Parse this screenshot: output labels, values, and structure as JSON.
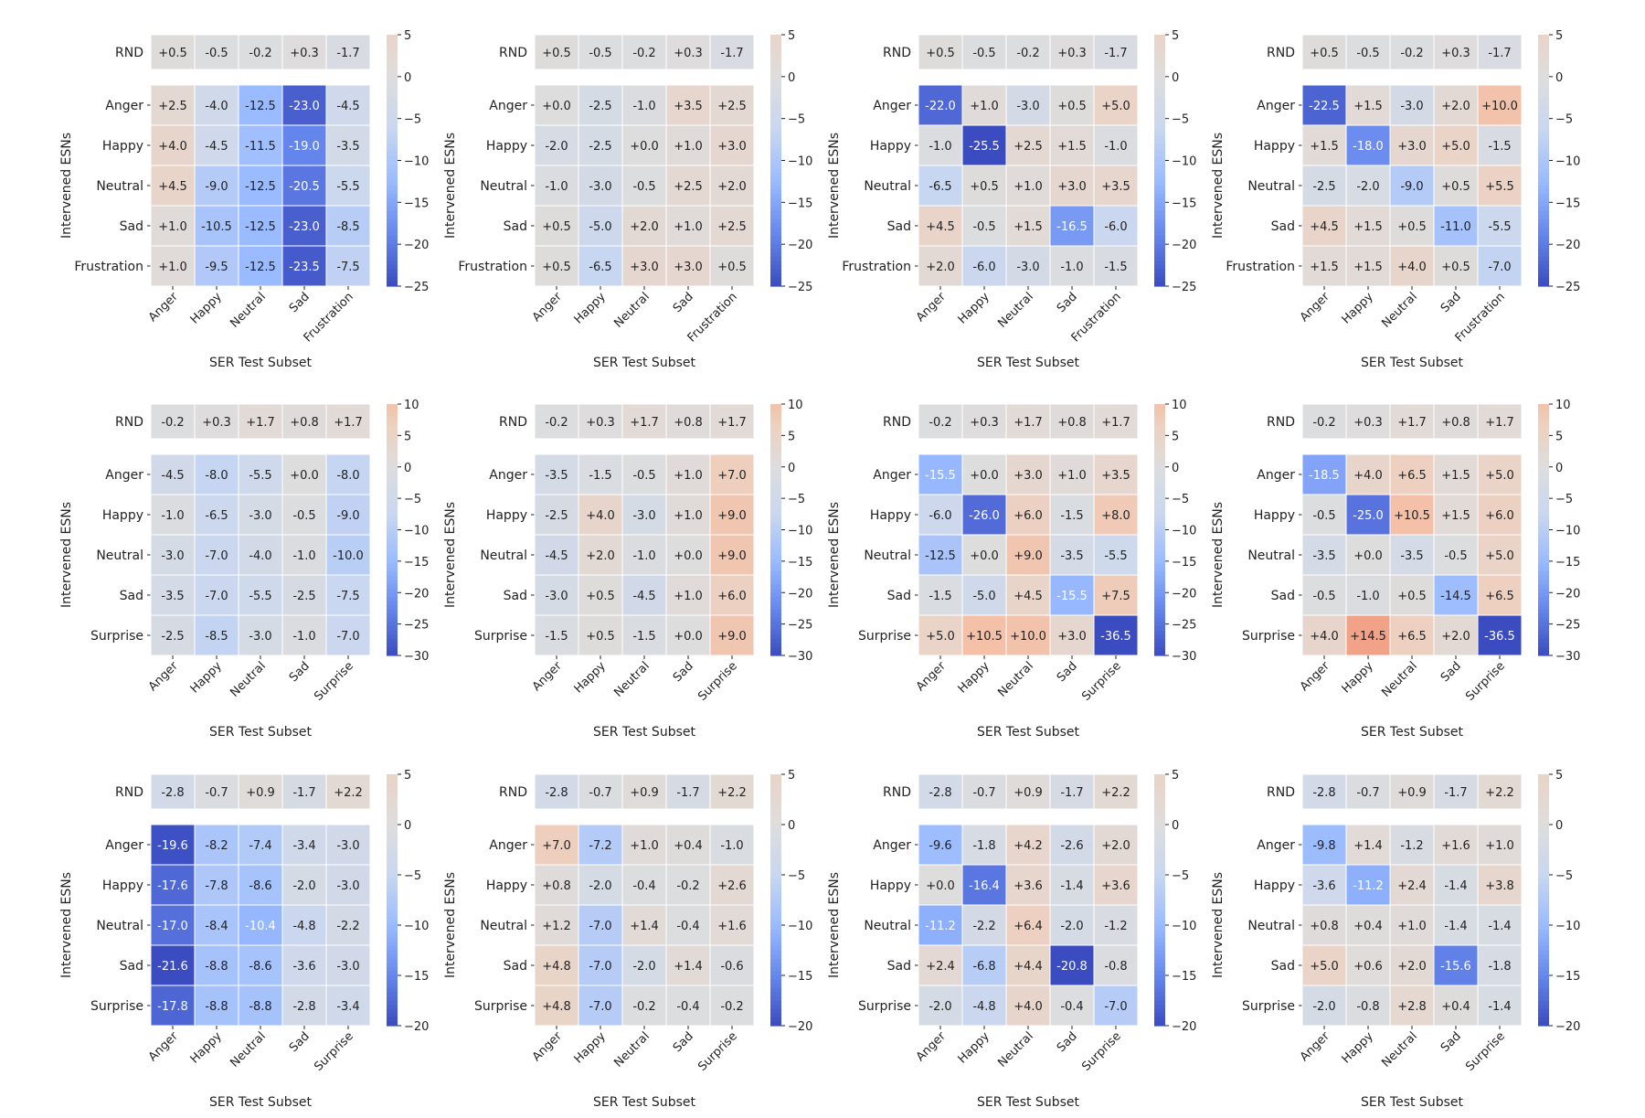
{
  "chart_data": [
    {
      "type": "heatmap",
      "xlabel": "SER Test Subset",
      "ylabel": "Intervened ESNs",
      "categories": [
        "Anger",
        "Happy",
        "Neutral",
        "Sad",
        "Frustration"
      ],
      "rnd": [
        "+0.5",
        "-0.5",
        "-0.2",
        "+0.3",
        "-1.7"
      ],
      "rows": [
        "Anger",
        "Happy",
        "Neutral",
        "Sad",
        "Frustration"
      ],
      "values": [
        [
          "+2.5",
          "-4.0",
          "-12.5",
          "-23.0",
          "-4.5"
        ],
        [
          "+4.0",
          "-4.5",
          "-11.5",
          "-19.0",
          "-3.5"
        ],
        [
          "+4.5",
          "-9.0",
          "-12.5",
          "-20.5",
          "-5.5"
        ],
        [
          "+1.0",
          "-10.5",
          "-12.5",
          "-23.0",
          "-8.5"
        ],
        [
          "+1.0",
          "-9.5",
          "-12.5",
          "-23.5",
          "-7.5"
        ]
      ],
      "colorbar": {
        "min": -25,
        "max": 5,
        "ticks": [
          "5",
          "0",
          "−5",
          "−10",
          "−15",
          "−20",
          "−25"
        ],
        "tick_values": [
          5,
          0,
          -5,
          -10,
          -15,
          -20,
          -25
        ]
      }
    },
    {
      "type": "heatmap",
      "xlabel": "SER Test Subset",
      "ylabel": "Intervened ESNs",
      "categories": [
        "Anger",
        "Happy",
        "Neutral",
        "Sad",
        "Frustration"
      ],
      "rnd": [
        "+0.5",
        "-0.5",
        "-0.2",
        "+0.3",
        "-1.7"
      ],
      "rows": [
        "Anger",
        "Happy",
        "Neutral",
        "Sad",
        "Frustration"
      ],
      "values": [
        [
          "+0.0",
          "-2.5",
          "-1.0",
          "+3.5",
          "+2.5"
        ],
        [
          "-2.0",
          "-2.5",
          "+0.0",
          "+1.0",
          "+3.0"
        ],
        [
          "-1.0",
          "-3.0",
          "-0.5",
          "+2.5",
          "+2.0"
        ],
        [
          "+0.5",
          "-5.0",
          "+2.0",
          "+1.0",
          "+2.5"
        ],
        [
          "+0.5",
          "-6.5",
          "+3.0",
          "+3.0",
          "+0.5"
        ]
      ],
      "colorbar": {
        "min": -25,
        "max": 5,
        "ticks": [
          "5",
          "0",
          "−5",
          "−10",
          "−15",
          "−20",
          "−25"
        ],
        "tick_values": [
          5,
          0,
          -5,
          -10,
          -15,
          -20,
          -25
        ]
      }
    },
    {
      "type": "heatmap",
      "xlabel": "SER Test Subset",
      "ylabel": "Intervened ESNs",
      "categories": [
        "Anger",
        "Happy",
        "Neutral",
        "Sad",
        "Frustration"
      ],
      "rnd": [
        "+0.5",
        "-0.5",
        "-0.2",
        "+0.3",
        "-1.7"
      ],
      "rows": [
        "Anger",
        "Happy",
        "Neutral",
        "Sad",
        "Frustration"
      ],
      "values": [
        [
          "-22.0",
          "+1.0",
          "-3.0",
          "+0.5",
          "+5.0"
        ],
        [
          "-1.0",
          "-25.5",
          "+2.5",
          "+1.5",
          "-1.0"
        ],
        [
          "-6.5",
          "+0.5",
          "+1.0",
          "+3.0",
          "+3.5"
        ],
        [
          "+4.5",
          "-0.5",
          "+1.5",
          "-16.5",
          "-6.0"
        ],
        [
          "+2.0",
          "-6.0",
          "-3.0",
          "-1.0",
          "-1.5"
        ]
      ],
      "colorbar": {
        "min": -25,
        "max": 5,
        "ticks": [
          "5",
          "0",
          "−5",
          "−10",
          "−15",
          "−20",
          "−25"
        ],
        "tick_values": [
          5,
          0,
          -5,
          -10,
          -15,
          -20,
          -25
        ]
      }
    },
    {
      "type": "heatmap",
      "xlabel": "SER Test Subset",
      "ylabel": "Intervened ESNs",
      "categories": [
        "Anger",
        "Happy",
        "Neutral",
        "Sad",
        "Frustration"
      ],
      "rnd": [
        "+0.5",
        "-0.5",
        "-0.2",
        "+0.3",
        "-1.7"
      ],
      "rows": [
        "Anger",
        "Happy",
        "Neutral",
        "Sad",
        "Frustration"
      ],
      "values": [
        [
          "-22.5",
          "+1.5",
          "-3.0",
          "+2.0",
          "+10.0"
        ],
        [
          "+1.5",
          "-18.0",
          "+3.0",
          "+5.0",
          "-1.5"
        ],
        [
          "-2.5",
          "-2.0",
          "-9.0",
          "+0.5",
          "+5.5"
        ],
        [
          "+4.5",
          "+1.5",
          "+0.5",
          "-11.0",
          "-5.5"
        ],
        [
          "+1.5",
          "+1.5",
          "+4.0",
          "+0.5",
          "-7.0"
        ]
      ],
      "colorbar": {
        "min": -25,
        "max": 5,
        "ticks": [
          "5",
          "0",
          "−5",
          "−10",
          "−15",
          "−20",
          "−25"
        ],
        "tick_values": [
          5,
          0,
          -5,
          -10,
          -15,
          -20,
          -25
        ]
      }
    },
    {
      "type": "heatmap",
      "xlabel": "SER Test Subset",
      "ylabel": "Intervened ESNs",
      "categories": [
        "Anger",
        "Happy",
        "Neutral",
        "Sad",
        "Surprise"
      ],
      "rnd": [
        "-0.2",
        "+0.3",
        "+1.7",
        "+0.8",
        "+1.7"
      ],
      "rows": [
        "Anger",
        "Happy",
        "Neutral",
        "Sad",
        "Surprise"
      ],
      "values": [
        [
          "-4.5",
          "-8.0",
          "-5.5",
          "+0.0",
          "-8.0"
        ],
        [
          "-1.0",
          "-6.5",
          "-3.0",
          "-0.5",
          "-9.0"
        ],
        [
          "-3.0",
          "-7.0",
          "-4.0",
          "-1.0",
          "-10.0"
        ],
        [
          "-3.5",
          "-7.0",
          "-5.5",
          "-2.5",
          "-7.5"
        ],
        [
          "-2.5",
          "-8.5",
          "-3.0",
          "-1.0",
          "-7.0"
        ]
      ],
      "colorbar": {
        "min": -30,
        "max": 10,
        "ticks": [
          "10",
          "5",
          "0",
          "−5",
          "−10",
          "−15",
          "−20",
          "−25",
          "−30"
        ],
        "tick_values": [
          10,
          5,
          0,
          -5,
          -10,
          -15,
          -20,
          -25,
          -30
        ]
      }
    },
    {
      "type": "heatmap",
      "xlabel": "SER Test Subset",
      "ylabel": "Intervened ESNs",
      "categories": [
        "Anger",
        "Happy",
        "Neutral",
        "Sad",
        "Surprise"
      ],
      "rnd": [
        "-0.2",
        "+0.3",
        "+1.7",
        "+0.8",
        "+1.7"
      ],
      "rows": [
        "Anger",
        "Happy",
        "Neutral",
        "Sad",
        "Surprise"
      ],
      "values": [
        [
          "-3.5",
          "-1.5",
          "-0.5",
          "+1.0",
          "+7.0"
        ],
        [
          "-2.5",
          "+4.0",
          "-3.0",
          "+1.0",
          "+9.0"
        ],
        [
          "-4.5",
          "+2.0",
          "-1.0",
          "+0.0",
          "+9.0"
        ],
        [
          "-3.0",
          "+0.5",
          "-4.5",
          "+1.0",
          "+6.0"
        ],
        [
          "-1.5",
          "+0.5",
          "-1.5",
          "+0.0",
          "+9.0"
        ]
      ],
      "colorbar": {
        "min": -30,
        "max": 10,
        "ticks": [
          "10",
          "5",
          "0",
          "−5",
          "−10",
          "−15",
          "−20",
          "−25",
          "−30"
        ],
        "tick_values": [
          10,
          5,
          0,
          -5,
          -10,
          -15,
          -20,
          -25,
          -30
        ]
      }
    },
    {
      "type": "heatmap",
      "xlabel": "SER Test Subset",
      "ylabel": "Intervened ESNs",
      "categories": [
        "Anger",
        "Happy",
        "Neutral",
        "Sad",
        "Surprise"
      ],
      "rnd": [
        "-0.2",
        "+0.3",
        "+1.7",
        "+0.8",
        "+1.7"
      ],
      "rows": [
        "Anger",
        "Happy",
        "Neutral",
        "Sad",
        "Surprise"
      ],
      "values": [
        [
          "-15.5",
          "+0.0",
          "+3.0",
          "+1.0",
          "+3.5"
        ],
        [
          "-6.0",
          "-26.0",
          "+6.0",
          "-1.5",
          "+8.0"
        ],
        [
          "-12.5",
          "+0.0",
          "+9.0",
          "-3.5",
          "-5.5"
        ],
        [
          "-1.5",
          "-5.0",
          "+4.5",
          "-15.5",
          "+7.5"
        ],
        [
          "+5.0",
          "+10.5",
          "+10.0",
          "+3.0",
          "-36.5"
        ]
      ],
      "colorbar": {
        "min": -30,
        "max": 10,
        "ticks": [
          "10",
          "5",
          "0",
          "−5",
          "−10",
          "−15",
          "−20",
          "−25",
          "−30"
        ],
        "tick_values": [
          10,
          5,
          0,
          -5,
          -10,
          -15,
          -20,
          -25,
          -30
        ]
      }
    },
    {
      "type": "heatmap",
      "xlabel": "SER Test Subset",
      "ylabel": "Intervened ESNs",
      "categories": [
        "Anger",
        "Happy",
        "Neutral",
        "Sad",
        "Surprise"
      ],
      "rnd": [
        "-0.2",
        "+0.3",
        "+1.7",
        "+0.8",
        "+1.7"
      ],
      "rows": [
        "Anger",
        "Happy",
        "Neutral",
        "Sad",
        "Surprise"
      ],
      "values": [
        [
          "-18.5",
          "+4.0",
          "+6.5",
          "+1.5",
          "+5.0"
        ],
        [
          "-0.5",
          "-25.0",
          "+10.5",
          "+1.5",
          "+6.0"
        ],
        [
          "-3.5",
          "+0.0",
          "-3.5",
          "-0.5",
          "+5.0"
        ],
        [
          "-0.5",
          "-1.0",
          "+0.5",
          "-14.5",
          "+6.5"
        ],
        [
          "+4.0",
          "+14.5",
          "+6.5",
          "+2.0",
          "-36.5"
        ]
      ],
      "colorbar": {
        "min": -30,
        "max": 10,
        "ticks": [
          "10",
          "5",
          "0",
          "−5",
          "−10",
          "−15",
          "−20",
          "−25",
          "−30"
        ],
        "tick_values": [
          10,
          5,
          0,
          -5,
          -10,
          -15,
          -20,
          -25,
          -30
        ]
      }
    },
    {
      "type": "heatmap",
      "xlabel": "SER Test Subset",
      "ylabel": "Intervened ESNs",
      "categories": [
        "Anger",
        "Happy",
        "Neutral",
        "Sad",
        "Surprise"
      ],
      "rnd": [
        "-2.8",
        "-0.7",
        "+0.9",
        "-1.7",
        "+2.2"
      ],
      "rows": [
        "Anger",
        "Happy",
        "Neutral",
        "Sad",
        "Surprise"
      ],
      "values": [
        [
          "-19.6",
          "-8.2",
          "-7.4",
          "-3.4",
          "-3.0"
        ],
        [
          "-17.6",
          "-7.8",
          "-8.6",
          "-2.0",
          "-3.0"
        ],
        [
          "-17.0",
          "-8.4",
          "-10.4",
          "-4.8",
          "-2.2"
        ],
        [
          "-21.6",
          "-8.8",
          "-8.6",
          "-3.6",
          "-3.0"
        ],
        [
          "-17.8",
          "-8.8",
          "-8.8",
          "-2.8",
          "-3.4"
        ]
      ],
      "colorbar": {
        "min": -20,
        "max": 5,
        "ticks": [
          "5",
          "0",
          "−5",
          "−10",
          "−15",
          "−20"
        ],
        "tick_values": [
          5,
          0,
          -5,
          -10,
          -15,
          -20
        ]
      }
    },
    {
      "type": "heatmap",
      "xlabel": "SER Test Subset",
      "ylabel": "Intervened ESNs",
      "categories": [
        "Anger",
        "Happy",
        "Neutral",
        "Sad",
        "Surprise"
      ],
      "rnd": [
        "-2.8",
        "-0.7",
        "+0.9",
        "-1.7",
        "+2.2"
      ],
      "rows": [
        "Anger",
        "Happy",
        "Neutral",
        "Sad",
        "Surprise"
      ],
      "values": [
        [
          "+7.0",
          "-7.2",
          "+1.0",
          "+0.4",
          "-1.0"
        ],
        [
          "+0.8",
          "-2.0",
          "-0.4",
          "-0.2",
          "+2.6"
        ],
        [
          "+1.2",
          "-7.0",
          "+1.4",
          "-0.4",
          "+1.6"
        ],
        [
          "+4.8",
          "-7.0",
          "-2.0",
          "+1.4",
          "-0.6"
        ],
        [
          "+4.8",
          "-7.0",
          "-0.2",
          "-0.4",
          "-0.2"
        ]
      ],
      "colorbar": {
        "min": -20,
        "max": 5,
        "ticks": [
          "5",
          "0",
          "−5",
          "−10",
          "−15",
          "−20"
        ],
        "tick_values": [
          5,
          0,
          -5,
          -10,
          -15,
          -20
        ]
      }
    },
    {
      "type": "heatmap",
      "xlabel": "SER Test Subset",
      "ylabel": "Intervened ESNs",
      "categories": [
        "Anger",
        "Happy",
        "Neutral",
        "Sad",
        "Surprise"
      ],
      "rnd": [
        "-2.8",
        "-0.7",
        "+0.9",
        "-1.7",
        "+2.2"
      ],
      "rows": [
        "Anger",
        "Happy",
        "Neutral",
        "Sad",
        "Surprise"
      ],
      "values": [
        [
          "-9.6",
          "-1.8",
          "+4.2",
          "-2.6",
          "+2.0"
        ],
        [
          "+0.0",
          "-16.4",
          "+3.6",
          "-1.4",
          "+3.6"
        ],
        [
          "-11.2",
          "-2.2",
          "+6.4",
          "-2.0",
          "-1.2"
        ],
        [
          "+2.4",
          "-6.8",
          "+4.4",
          "-20.8",
          "-0.8"
        ],
        [
          "-2.0",
          "-4.8",
          "+4.0",
          "-0.4",
          "-7.0"
        ]
      ],
      "colorbar": {
        "min": -20,
        "max": 5,
        "ticks": [
          "5",
          "0",
          "−5",
          "−10",
          "−15",
          "−20"
        ],
        "tick_values": [
          5,
          0,
          -5,
          -10,
          -15,
          -20
        ]
      }
    },
    {
      "type": "heatmap",
      "xlabel": "SER Test Subset",
      "ylabel": "Intervened ESNs",
      "categories": [
        "Anger",
        "Happy",
        "Neutral",
        "Sad",
        "Surprise"
      ],
      "rnd": [
        "-2.8",
        "-0.7",
        "+0.9",
        "-1.7",
        "+2.2"
      ],
      "rows": [
        "Anger",
        "Happy",
        "Neutral",
        "Sad",
        "Surprise"
      ],
      "values": [
        [
          "-9.8",
          "+1.4",
          "-1.2",
          "+1.6",
          "+1.0"
        ],
        [
          "-3.6",
          "-11.2",
          "+2.4",
          "-1.4",
          "+3.8"
        ],
        [
          "+0.8",
          "+0.4",
          "+1.0",
          "-1.4",
          "-1.4"
        ],
        [
          "+5.0",
          "+0.6",
          "+2.0",
          "-15.6",
          "-1.8"
        ],
        [
          "-2.0",
          "-0.8",
          "+2.8",
          "+0.4",
          "-1.4"
        ]
      ],
      "colorbar": {
        "min": -20,
        "max": 5,
        "ticks": [
          "5",
          "0",
          "−5",
          "−10",
          "−15",
          "−20"
        ],
        "tick_values": [
          5,
          0,
          -5,
          -10,
          -15,
          -20
        ]
      }
    }
  ],
  "colors": {
    "low": "#3b4cc0",
    "mid": "#dddddd",
    "high": "#b40426",
    "text_dark": "#222222",
    "text_light": "#ffffff"
  },
  "rnd_label": "RND"
}
